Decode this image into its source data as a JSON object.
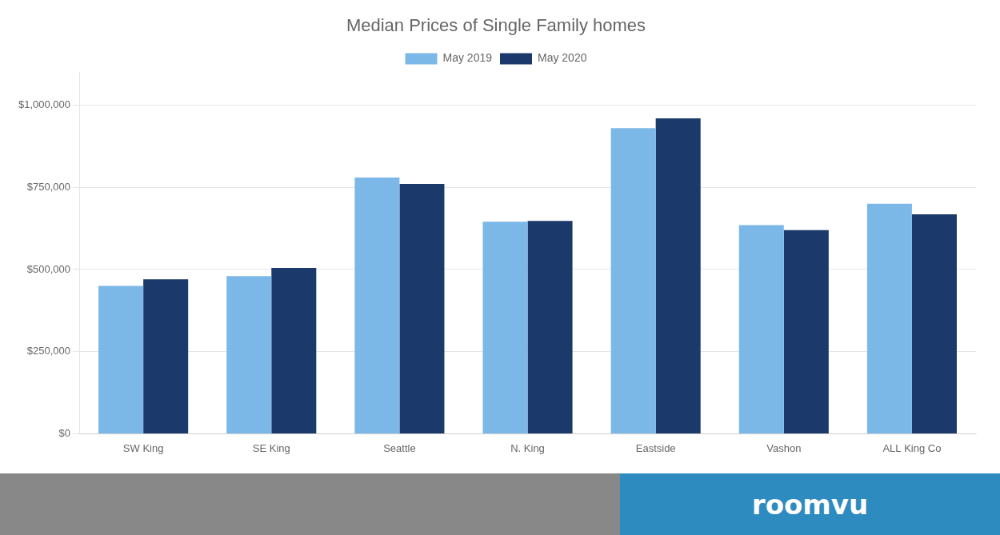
{
  "chart_data": {
    "type": "bar",
    "title": "Median Prices of Single Family homes",
    "categories": [
      "SW King",
      "SE King",
      "Seattle",
      "N. King",
      "Eastside",
      "Vashon",
      "ALL King Co"
    ],
    "series": [
      {
        "name": "May 2019",
        "color": "#7BB8E8",
        "values": [
          450000,
          480000,
          780000,
          645000,
          930000,
          635000,
          700000
        ]
      },
      {
        "name": "May 2020",
        "color": "#1B3A6B",
        "values": [
          470000,
          505000,
          760000,
          648000,
          960000,
          620000,
          668000
        ]
      }
    ],
    "ylim": [
      0,
      1100000
    ],
    "yticks": [
      {
        "value": 0,
        "label": "$0"
      },
      {
        "value": 250000,
        "label": "$250,000"
      },
      {
        "value": 500000,
        "label": "$500,000"
      },
      {
        "value": 750000,
        "label": "$750,000"
      },
      {
        "value": 1000000,
        "label": "$1,000,000"
      }
    ],
    "grid": true,
    "legend": "top",
    "annotations": [
      "roomvu"
    ]
  }
}
